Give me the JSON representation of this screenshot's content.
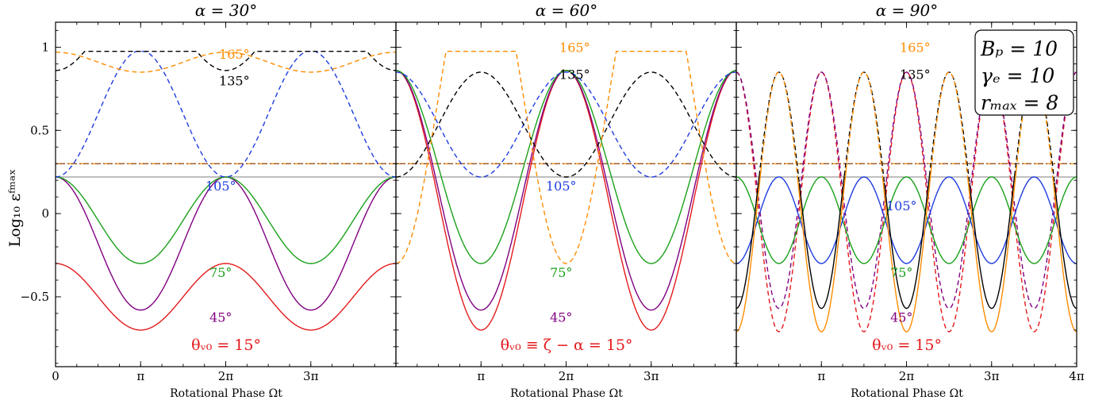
{
  "figure": {
    "ylabel": "Log₁₀ εᶠᵐᵃˣ",
    "params_box": [
      "Bₚ = 10",
      "γₑ = 10",
      "rₘₐₓ = 8"
    ]
  },
  "chart_data": [
    {
      "type": "line",
      "title": "α = 30°",
      "xlabel": "Rotational Phase Ωt",
      "ylabel": "Log₁₀ εᶠᵐᵃˣ",
      "xlim": [
        0,
        12.566
      ],
      "ylim": [
        -0.92,
        1.15
      ],
      "x_ticks": [
        {
          "value": 0,
          "label": "0"
        },
        {
          "value": 3.1416,
          "label": "π"
        },
        {
          "value": 6.2832,
          "label": "2π"
        },
        {
          "value": 9.4248,
          "label": "3π"
        }
      ],
      "y_ticks": [
        {
          "value": -0.5,
          "label": "−0.5"
        },
        {
          "value": 0,
          "label": "0"
        },
        {
          "value": 0.5,
          "label": "0.5"
        },
        {
          "value": 1,
          "label": "1"
        }
      ],
      "hlines": [
        {
          "y": 0.3,
          "color": "#ff8c00",
          "style": "dashdot"
        },
        {
          "y": 0.3,
          "color": "#8b4513",
          "style": "dashdot"
        },
        {
          "y": 0.22,
          "color": "#999999",
          "style": "solid"
        }
      ],
      "series": [
        {
          "theta": 15,
          "color": "#e41a1c",
          "dash": false,
          "kind": "cos",
          "a": -0.5,
          "b": 0.2
        },
        {
          "theta": 45,
          "color": "#800080",
          "dash": false,
          "kind": "cos",
          "a": -0.18,
          "b": 0.4
        },
        {
          "theta": 75,
          "color": "#1aa11a",
          "dash": false,
          "kind": "cos",
          "a": -0.04,
          "b": 0.26
        },
        {
          "theta": 105,
          "color": "#1f3de0",
          "dash": true,
          "kind": "cos",
          "a": 0.6,
          "b": -0.38,
          "cap": 0.975
        },
        {
          "theta": 135,
          "color": "#000000",
          "dash": true,
          "kind": "cos",
          "a": 1.08,
          "b": -0.22,
          "cap": 0.975
        },
        {
          "theta": 165,
          "color": "#ff8c00",
          "dash": true,
          "kind": "cos",
          "a": 0.91,
          "b": 0.06,
          "cap": 0.975
        }
      ],
      "curve_labels": [
        {
          "text": "165°",
          "color": "#ff8c00",
          "x": 6.6,
          "y": 0.93
        },
        {
          "text": "135°",
          "color": "#000000",
          "x": 6.6,
          "y": 0.77
        },
        {
          "text": "105°",
          "color": "#1f3de0",
          "x": 6.1,
          "y": 0.14
        },
        {
          "text": "75°",
          "color": "#1aa11a",
          "x": 6.1,
          "y": -0.38
        },
        {
          "text": "45°",
          "color": "#800080",
          "x": 6.1,
          "y": -0.65
        },
        {
          "text": "θᵥ₀ = 15°",
          "color": "#e41a1c",
          "x": 6.3,
          "y": -0.82,
          "big": true
        }
      ]
    },
    {
      "type": "line",
      "title": "α = 60°",
      "xlabel": "Rotational Phase Ωt",
      "ylabel": "",
      "xlim": [
        0,
        12.566
      ],
      "ylim": [
        -0.92,
        1.15
      ],
      "x_ticks": [
        {
          "value": 3.1416,
          "label": "π"
        },
        {
          "value": 6.2832,
          "label": "2π"
        },
        {
          "value": 9.4248,
          "label": "3π"
        }
      ],
      "y_ticks": [
        {
          "value": -0.5,
          "label": ""
        },
        {
          "value": 0,
          "label": ""
        },
        {
          "value": 0.5,
          "label": ""
        },
        {
          "value": 1,
          "label": ""
        }
      ],
      "hlines": [
        {
          "y": 0.3,
          "color": "#ff8c00",
          "style": "dashdot"
        },
        {
          "y": 0.3,
          "color": "#8b4513",
          "style": "dashdot"
        },
        {
          "y": 0.22,
          "color": "#999999",
          "style": "solid"
        }
      ],
      "series": [
        {
          "theta": 15,
          "color": "#e41a1c",
          "dash": false,
          "kind": "cos",
          "a": 0.08,
          "b": 0.78
        },
        {
          "theta": 45,
          "color": "#800080",
          "dash": false,
          "kind": "cos",
          "a": 0.14,
          "b": 0.72
        },
        {
          "theta": 75,
          "color": "#1aa11a",
          "dash": false,
          "kind": "cos",
          "a": 0.28,
          "b": 0.58,
          "cap": 0.975
        },
        {
          "theta": 105,
          "color": "#1f3de0",
          "dash": true,
          "kind": "cos",
          "a": 0.535,
          "b": 0.315
        },
        {
          "theta": 135,
          "color": "#000000",
          "dash": true,
          "kind": "cos",
          "a": 0.535,
          "b": -0.315
        },
        {
          "theta": 165,
          "color": "#ff8c00",
          "dash": true,
          "kind": "cos",
          "a": 0.7,
          "b": -1.0,
          "cap": 0.975
        }
      ],
      "curve_labels": [
        {
          "text": "165°",
          "color": "#ff8c00",
          "x": 6.6,
          "y": 0.97
        },
        {
          "text": "135°",
          "color": "#000000",
          "x": 6.6,
          "y": 0.81
        },
        {
          "text": "105°",
          "color": "#1f3de0",
          "x": 6.1,
          "y": 0.14
        },
        {
          "text": "75°",
          "color": "#1aa11a",
          "x": 6.1,
          "y": -0.38
        },
        {
          "text": "45°",
          "color": "#800080",
          "x": 6.1,
          "y": -0.65
        },
        {
          "text": "θᵥ₀ ≡ ζ − α = 15°",
          "color": "#e41a1c",
          "x": 6.3,
          "y": -0.82,
          "big": true
        }
      ]
    },
    {
      "type": "line",
      "title": "α = 90°",
      "xlabel": "Rotational Phase Ωt",
      "ylabel": "",
      "xlim": [
        0,
        12.566
      ],
      "ylim": [
        -0.92,
        1.15
      ],
      "x_ticks": [
        {
          "value": 3.1416,
          "label": "π"
        },
        {
          "value": 6.2832,
          "label": "2π"
        },
        {
          "value": 9.4248,
          "label": "3π"
        },
        {
          "value": 12.566,
          "label": "4π"
        }
      ],
      "y_ticks": [
        {
          "value": -0.5,
          "label": ""
        },
        {
          "value": 0,
          "label": ""
        },
        {
          "value": 0.5,
          "label": ""
        },
        {
          "value": 1,
          "label": ""
        }
      ],
      "hlines": [
        {
          "y": 0.3,
          "color": "#ff8c00",
          "style": "dashdot"
        },
        {
          "y": 0.3,
          "color": "#8b4513",
          "style": "dashdot"
        },
        {
          "y": 0.22,
          "color": "#999999",
          "style": "solid"
        }
      ],
      "series": [
        {
          "theta": 15,
          "color": "#e41a1c",
          "dash": true,
          "kind": "cos2",
          "a": 0.07,
          "b": 0.78,
          "cap": 0.975
        },
        {
          "theta": 45,
          "color": "#800080",
          "dash": true,
          "kind": "cos2",
          "a": 0.14,
          "b": 0.71
        },
        {
          "theta": 75,
          "color": "#1aa11a",
          "dash": false,
          "kind": "cos2",
          "a": -0.04,
          "b": 0.26
        },
        {
          "theta": 105,
          "color": "#1f3de0",
          "dash": false,
          "kind": "cos2",
          "a": -0.04,
          "b": -0.26
        },
        {
          "theta": 135,
          "color": "#000000",
          "dash": false,
          "kind": "cos2",
          "a": 0.14,
          "b": -0.71,
          "dashAbove": 0.22
        },
        {
          "theta": 165,
          "color": "#ff8c00",
          "dash": false,
          "kind": "cos2",
          "a": 0.07,
          "b": -0.78,
          "cap": 0.975,
          "dashAbove": 0.22
        }
      ],
      "curve_labels": [
        {
          "text": "165°",
          "color": "#ff8c00",
          "x": 6.6,
          "y": 0.97
        },
        {
          "text": "135°",
          "color": "#000000",
          "x": 6.6,
          "y": 0.81
        },
        {
          "text": "105°",
          "color": "#1f3de0",
          "x": 6.1,
          "y": 0.02
        },
        {
          "text": "75°",
          "color": "#1aa11a",
          "x": 6.1,
          "y": -0.38
        },
        {
          "text": "45°",
          "color": "#800080",
          "x": 6.1,
          "y": -0.65
        },
        {
          "text": "θᵥ₀ = 15°",
          "color": "#e41a1c",
          "x": 6.3,
          "y": -0.82,
          "big": true
        }
      ]
    }
  ]
}
